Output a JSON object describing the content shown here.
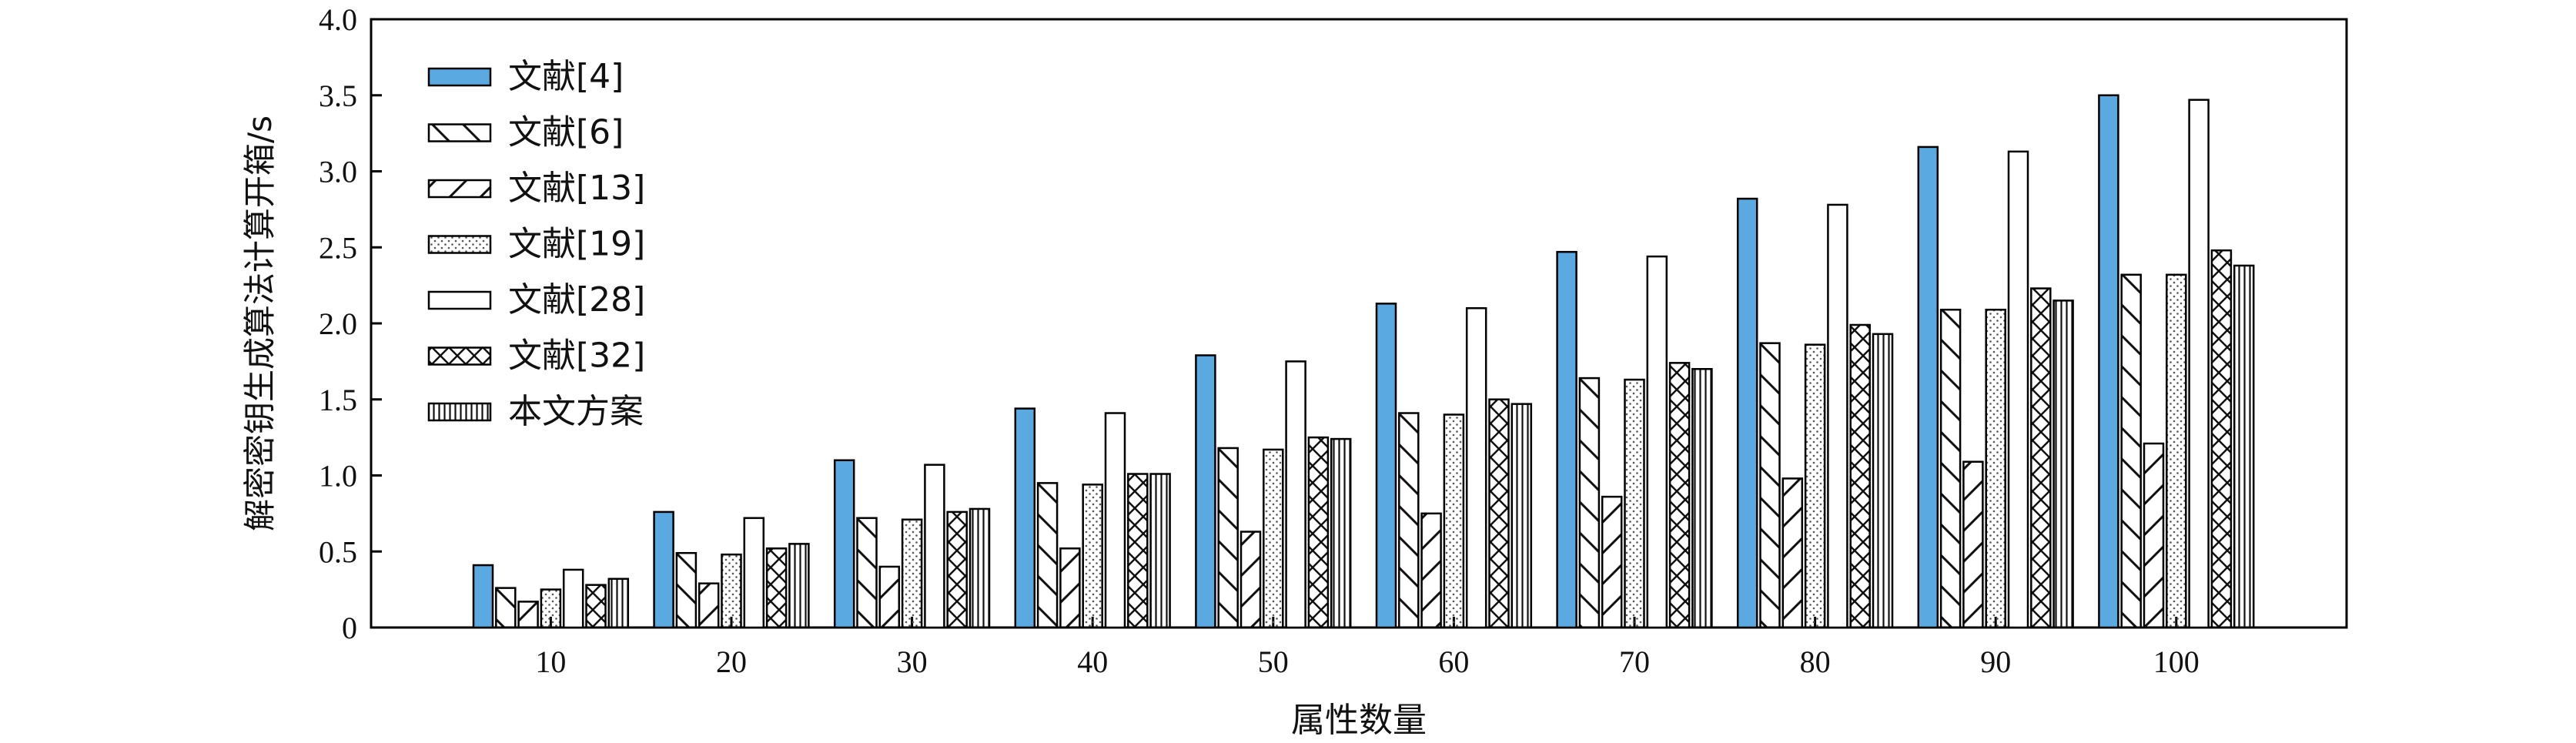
{
  "chart_data": {
    "type": "bar",
    "title": "",
    "xlabel": "属性数量",
    "ylabel": "解密密钥生成算法计算开箱/s",
    "categories": [
      "10",
      "20",
      "30",
      "40",
      "50",
      "60",
      "70",
      "80",
      "90",
      "100"
    ],
    "ylim": [
      0,
      4.0
    ],
    "yticks": [
      "0",
      "0.5",
      "1.0",
      "1.5",
      "2.0",
      "2.5",
      "3.0",
      "3.5",
      "4.0"
    ],
    "grid": false,
    "legend_position": "top-left",
    "series": [
      {
        "name": "文献[4]",
        "pattern": "solid-blue",
        "color": "#5aa9e0",
        "values": [
          0.41,
          0.76,
          1.1,
          1.44,
          1.79,
          2.13,
          2.47,
          2.82,
          3.16,
          3.5
        ]
      },
      {
        "name": "文献[6]",
        "pattern": "back-diagonal",
        "values": [
          0.26,
          0.49,
          0.72,
          0.95,
          1.18,
          1.41,
          1.64,
          1.87,
          2.09,
          2.32
        ]
      },
      {
        "name": "文献[13]",
        "pattern": "forward-diagonal",
        "values": [
          0.17,
          0.29,
          0.4,
          0.52,
          0.63,
          0.75,
          0.86,
          0.98,
          1.09,
          1.21
        ]
      },
      {
        "name": "文献[19]",
        "pattern": "dots",
        "values": [
          0.25,
          0.48,
          0.71,
          0.94,
          1.17,
          1.4,
          1.63,
          1.86,
          2.09,
          2.32
        ]
      },
      {
        "name": "文献[28]",
        "pattern": "empty",
        "values": [
          0.38,
          0.72,
          1.07,
          1.41,
          1.75,
          2.1,
          2.44,
          2.78,
          3.13,
          3.47
        ]
      },
      {
        "name": "文献[32]",
        "pattern": "crosshatch",
        "values": [
          0.28,
          0.52,
          0.76,
          1.01,
          1.25,
          1.5,
          1.74,
          1.99,
          2.23,
          2.48
        ]
      },
      {
        "name": "本文方案",
        "pattern": "vertical-lines",
        "values": [
          0.32,
          0.55,
          0.78,
          1.01,
          1.24,
          1.47,
          1.7,
          1.93,
          2.15,
          2.38
        ]
      }
    ]
  }
}
